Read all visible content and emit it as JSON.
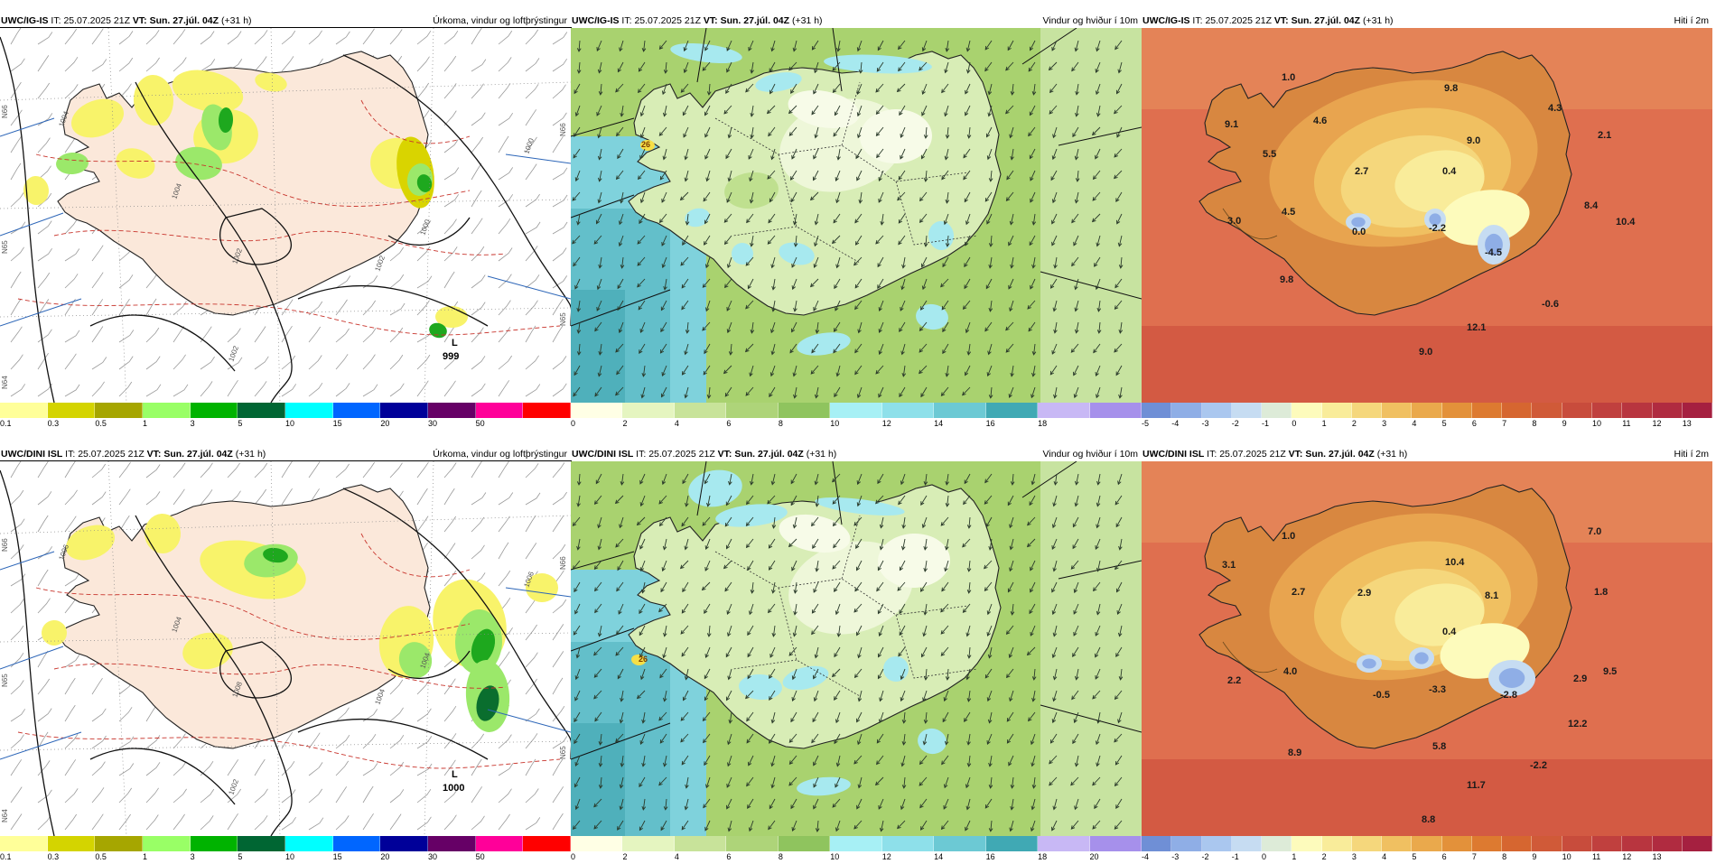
{
  "rows": [
    {
      "panels": [
        {
          "model": "UWC/IG-IS",
          "it_label": "IT:",
          "it": "25.07.2025 21Z",
          "vt_label": "VT:",
          "vt": "Sun. 27.júl. 04Z",
          "lead": "(+31 h)",
          "title": "Úrkoma, vindur og loftþrýstingur",
          "kind": "precip",
          "low_label": "L",
          "low_value": "999",
          "isobars": [
            "1004",
            "1004",
            "1002",
            "1000",
            "1002",
            "1002",
            "1000"
          ],
          "lat_labels": [
            "N66",
            "N65",
            "N64",
            "N66",
            "N65"
          ]
        },
        {
          "model": "UWC/IG-IS",
          "it_label": "IT:",
          "it": "25.07.2025 21Z",
          "vt_label": "VT:",
          "vt": "Sun. 27.júl. 04Z",
          "lead": "(+31 h)",
          "title": "Vindur og hviður í 10m",
          "kind": "wind",
          "gust_label": "26"
        },
        {
          "model": "UWC/IG-IS",
          "it_label": "IT:",
          "it": "25.07.2025 21Z",
          "vt_label": "VT:",
          "vt": "Sun. 27.júl. 04Z",
          "lead": "(+31 h)",
          "title": "Hiti í 2m",
          "kind": "temp",
          "temps": [
            "1.0",
            "9.8",
            "4.3",
            "9.1",
            "4.6",
            "5.5",
            "2.7",
            "0.4",
            "9.0",
            "2.1",
            "4.5",
            "3.0",
            "0.0",
            "-2.2",
            "8.4",
            "10.4",
            "-4.5",
            "9.8",
            "-0.6",
            "12.1",
            "9.0"
          ]
        }
      ]
    },
    {
      "panels": [
        {
          "model": "UWC/DINI ISL",
          "it_label": "IT:",
          "it": "25.07.2025 21Z",
          "vt_label": "VT:",
          "vt": "Sun. 27.júl. 04Z",
          "lead": "(+31 h)",
          "title": "Úrkoma, vindur og loftþrýstingur",
          "kind": "precip",
          "low_label": "L",
          "low_value": "1000",
          "isobars": [
            "1006",
            "1004",
            "1008",
            "1006",
            "1004",
            "1002",
            "1004"
          ],
          "lat_labels": [
            "N66",
            "N65",
            "N64",
            "N66",
            "N65"
          ]
        },
        {
          "model": "UWC/DINI ISL",
          "it_label": "IT:",
          "it": "25.07.2025 21Z",
          "vt_label": "VT:",
          "vt": "Sun. 27.júl. 04Z",
          "lead": "(+31 h)",
          "title": "Vindur og hviður í 10m",
          "kind": "wind",
          "gust_label": "26"
        },
        {
          "model": "UWC/DINI ISL",
          "it_label": "IT:",
          "it": "25.07.2025 21Z",
          "vt_label": "VT:",
          "vt": "Sun. 27.júl. 04Z",
          "lead": "(+31 h)",
          "title": "Hiti í 2m",
          "kind": "temp",
          "temps": [
            "1.0",
            "7.0",
            "3.1",
            "10.4",
            "2.7",
            "2.9",
            "8.1",
            "1.8",
            "0.4",
            "4.0",
            "2.2",
            "-0.5",
            "-3.3",
            "-2.8",
            "2.9",
            "9.5",
            "12.2",
            "5.8",
            "8.9",
            "-2.2",
            "11.7",
            "8.8"
          ]
        }
      ]
    }
  ],
  "colorbars": {
    "precip": {
      "colors": [
        "#ffff99",
        "#d4d400",
        "#a6a600",
        "#99ff66",
        "#00b300",
        "#006633",
        "#00ffff",
        "#0066ff",
        "#000099",
        "#660066",
        "#ff0099",
        "#ff0000"
      ],
      "labels": [
        "0.1",
        "0.3",
        "0.5",
        "1",
        "3",
        "5",
        "10",
        "15",
        "20",
        "30",
        "50"
      ]
    },
    "wind": {
      "colors": [
        "#ffffe5",
        "#e5f5c0",
        "#c8e39a",
        "#aed479",
        "#8fc45e",
        "#a7f0f5",
        "#8ee0ea",
        "#6cc9d4",
        "#40a9b4",
        "#c8b8f5",
        "#a690eb"
      ],
      "labels": [
        "0",
        "2",
        "4",
        "6",
        "8",
        "10",
        "12",
        "14",
        "16",
        "18"
      ],
      "labels_row2": [
        "0",
        "2",
        "4",
        "6",
        "8",
        "10",
        "12",
        "14",
        "16",
        "18",
        "20"
      ]
    },
    "temp": {
      "colors": [
        "#6f8fd6",
        "#8faee6",
        "#aac7ef",
        "#c6dcf2",
        "#ddebd8",
        "#fdfbbc",
        "#f9ec9a",
        "#f5d77c",
        "#f0c061",
        "#eaa94c",
        "#e3913a",
        "#dd7a30",
        "#d66630",
        "#d05a38",
        "#c84c3c",
        "#c0403e",
        "#b8353f",
        "#b02b40",
        "#a52040"
      ],
      "labels": [
        "-5",
        "-4",
        "-3",
        "-2",
        "-1",
        "0",
        "1",
        "2",
        "3",
        "4",
        "5",
        "6",
        "7",
        "8",
        "9",
        "10",
        "11",
        "12",
        "13"
      ],
      "labels_row2": [
        "-4",
        "-3",
        "-2",
        "-1",
        "0",
        "1",
        "2",
        "3",
        "4",
        "5",
        "6",
        "7",
        "8",
        "9",
        "10",
        "11",
        "12",
        "13"
      ]
    }
  }
}
